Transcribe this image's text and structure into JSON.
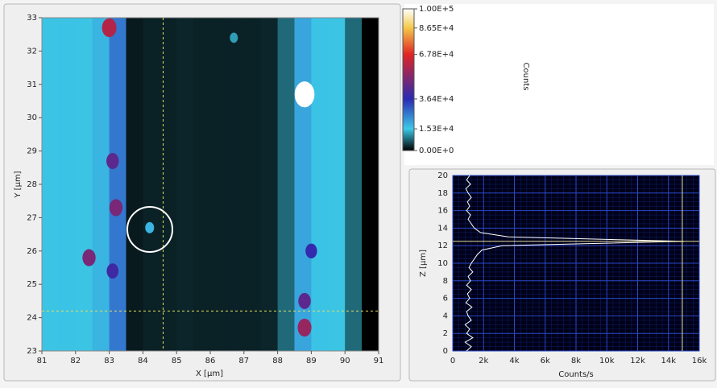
{
  "chart_data": [
    {
      "type": "heatmap",
      "xlabel": "X [µm]",
      "ylabel": "Y [µm]",
      "xlim": [
        81,
        91
      ],
      "ylim": [
        23,
        33
      ],
      "xticks": [
        81,
        82,
        83,
        84,
        85,
        86,
        87,
        88,
        89,
        90,
        91
      ],
      "yticks": [
        23,
        24,
        25,
        26,
        27,
        28,
        29,
        30,
        31,
        32,
        33
      ],
      "x_edges": [
        81,
        81.5,
        82,
        82.5,
        83,
        83.5,
        84,
        84.5,
        85,
        85.5,
        86,
        86.5,
        87,
        87.5,
        88,
        88.5,
        89,
        89.5,
        90,
        90.5,
        91
      ],
      "values": [
        15000,
        16000,
        15000,
        18000,
        26000,
        2000,
        2500,
        2500,
        2800,
        2500,
        2500,
        2600,
        2500,
        2800,
        8000,
        20000,
        16000,
        15000,
        8000,
        0
      ],
      "spots": [
        {
          "x": 83.0,
          "y": 32.7,
          "value": 60000
        },
        {
          "x": 88.8,
          "y": 30.7,
          "value": 100000
        },
        {
          "x": 82.4,
          "y": 25.8,
          "value": 50000
        },
        {
          "x": 83.1,
          "y": 28.7,
          "value": 45000
        },
        {
          "x": 83.2,
          "y": 27.3,
          "value": 50000
        },
        {
          "x": 83.1,
          "y": 25.4,
          "value": 40000
        },
        {
          "x": 88.8,
          "y": 23.7,
          "value": 55000
        },
        {
          "x": 88.8,
          "y": 24.5,
          "value": 45000
        },
        {
          "x": 84.2,
          "y": 26.7,
          "value": 18000
        },
        {
          "x": 86.7,
          "y": 32.4,
          "value": 12000
        },
        {
          "x": 89.0,
          "y": 26.0,
          "value": 38000
        }
      ],
      "cursor": {
        "x": 84.6,
        "y": 24.2
      },
      "colorbar_label": "Counts",
      "clim": [
        0,
        100000
      ],
      "cticks": [
        {
          "value": 0,
          "label": "0.00E+0"
        },
        {
          "value": 15300,
          "label": "1.53E+4"
        },
        {
          "value": 36400,
          "label": "3.64E+4"
        },
        {
          "value": 67800,
          "label": "6.78E+4"
        },
        {
          "value": 86500,
          "label": "8.65E+4"
        },
        {
          "value": 100000,
          "label": "1.00E+5"
        }
      ],
      "colormap": [
        "#000000",
        "#3cc8e8",
        "#2a2ab4",
        "#e02424",
        "#f4c84a",
        "#ffffff"
      ]
    },
    {
      "type": "line",
      "xlabel": "Counts/s",
      "ylabel": "Z [µm]",
      "xlim": [
        0,
        16000
      ],
      "ylim": [
        0,
        20
      ],
      "xticks": [
        0,
        {
          "value": 2000,
          "label": "2k"
        },
        {
          "value": 4000,
          "label": "4k"
        },
        {
          "value": 6000,
          "label": "6k"
        },
        {
          "value": 8000,
          "label": "8k"
        },
        {
          "value": 10000,
          "label": "10k"
        },
        {
          "value": 12000,
          "label": "12k"
        },
        {
          "value": 14000,
          "label": "14k"
        },
        {
          "value": 16000,
          "label": "16k"
        }
      ],
      "yticks": [
        0,
        2,
        4,
        6,
        8,
        10,
        12,
        14,
        16,
        18,
        20
      ],
      "grid": true,
      "color": "#ffffff",
      "z": [
        0,
        0.5,
        1,
        1.5,
        2,
        2.5,
        3,
        3.5,
        4,
        4.5,
        5,
        5.5,
        6,
        6.5,
        7,
        7.5,
        8,
        8.5,
        9,
        9.5,
        10,
        10.5,
        11,
        11.5,
        12,
        12.5,
        13,
        13.5,
        14,
        14.5,
        15,
        15.5,
        16,
        16.5,
        17,
        17.5,
        18,
        18.5,
        19,
        19.5,
        20
      ],
      "values": [
        900,
        1200,
        800,
        1300,
        900,
        1100,
        800,
        1200,
        1000,
        900,
        1250,
        850,
        1100,
        950,
        1200,
        900,
        1150,
        1000,
        1300,
        1050,
        1200,
        1400,
        1600,
        1900,
        3200,
        15000,
        3600,
        1800,
        1400,
        1200,
        1000,
        1150,
        900,
        1100,
        950,
        1200,
        1000,
        850,
        1150,
        900,
        1100
      ],
      "cursor": {
        "x": 14900,
        "y": 12.5
      }
    }
  ]
}
